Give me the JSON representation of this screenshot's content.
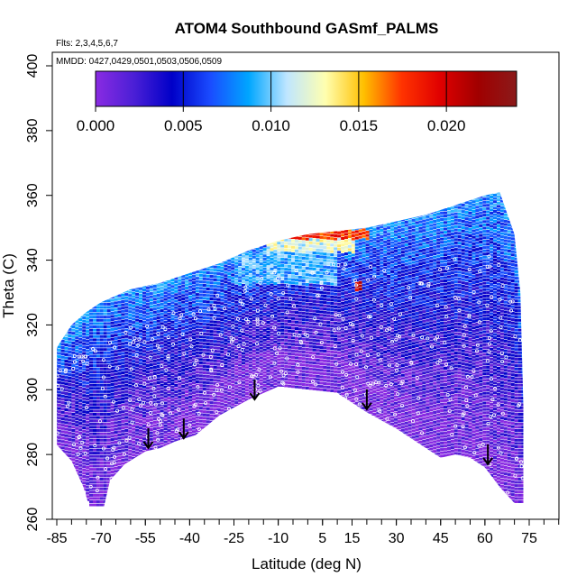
{
  "chart_data": {
    "type": "heatmap",
    "title": "ATOM4 Southbound GASmf_PALMS",
    "flights_note": "Flts: 2,3,4,5,6,7",
    "dates_note": "MMDD: 0427,0429,0501,0503,0506,0509",
    "xlabel": "Latitude (deg N)",
    "ylabel": "Theta (C)",
    "xlim": [
      -88,
      85
    ],
    "ylim": [
      260,
      405
    ],
    "x_tick_labels": [
      -85,
      -70,
      -55,
      -40,
      -25,
      -10,
      5,
      15,
      30,
      45,
      60,
      75
    ],
    "y_tick_labels": [
      260,
      280,
      300,
      320,
      340,
      360,
      380,
      400
    ],
    "colorbar": {
      "range": [
        0,
        0.024
      ],
      "tick_values": [
        0.0,
        0.005,
        0.01,
        0.015,
        0.02
      ],
      "tick_labels": [
        "0.000",
        "0.005",
        "0.010",
        "0.015",
        "0.020"
      ],
      "colors": [
        "#8a2be2",
        "#4b1fd6",
        "#0000c8",
        "#1a4cff",
        "#00a6ff",
        "#bfe6ff",
        "#ffffb0",
        "#ffc000",
        "#ff3300",
        "#e00000",
        "#a00000",
        "#8b1a1a"
      ]
    },
    "data_upper_boundary": [
      {
        "lat": -85,
        "theta": 313
      },
      {
        "lat": -80,
        "theta": 320
      },
      {
        "lat": -75,
        "theta": 324
      },
      {
        "lat": -70,
        "theta": 327
      },
      {
        "lat": -60,
        "theta": 331
      },
      {
        "lat": -50,
        "theta": 333
      },
      {
        "lat": -40,
        "theta": 336
      },
      {
        "lat": -30,
        "theta": 339
      },
      {
        "lat": -20,
        "theta": 343
      },
      {
        "lat": -10,
        "theta": 346
      },
      {
        "lat": 0,
        "theta": 348
      },
      {
        "lat": 10,
        "theta": 349
      },
      {
        "lat": 20,
        "theta": 350
      },
      {
        "lat": 30,
        "theta": 352
      },
      {
        "lat": 40,
        "theta": 354
      },
      {
        "lat": 50,
        "theta": 357
      },
      {
        "lat": 60,
        "theta": 360
      },
      {
        "lat": 65,
        "theta": 361
      },
      {
        "lat": 70,
        "theta": 348
      },
      {
        "lat": 72,
        "theta": 330
      },
      {
        "lat": 73,
        "theta": 295
      }
    ],
    "data_lower_boundary": [
      {
        "lat": -85,
        "theta": 283
      },
      {
        "lat": -80,
        "theta": 278
      },
      {
        "lat": -76,
        "theta": 270
      },
      {
        "lat": -74,
        "theta": 264
      },
      {
        "lat": -69,
        "theta": 264
      },
      {
        "lat": -67,
        "theta": 272
      },
      {
        "lat": -62,
        "theta": 277
      },
      {
        "lat": -55,
        "theta": 281
      },
      {
        "lat": -50,
        "theta": 282
      },
      {
        "lat": -45,
        "theta": 284
      },
      {
        "lat": -38,
        "theta": 286
      },
      {
        "lat": -30,
        "theta": 292
      },
      {
        "lat": -20,
        "theta": 297
      },
      {
        "lat": -10,
        "theta": 301
      },
      {
        "lat": 0,
        "theta": 300
      },
      {
        "lat": 10,
        "theta": 299
      },
      {
        "lat": 20,
        "theta": 293
      },
      {
        "lat": 30,
        "theta": 288
      },
      {
        "lat": 40,
        "theta": 282
      },
      {
        "lat": 45,
        "theta": 279
      },
      {
        "lat": 50,
        "theta": 280
      },
      {
        "lat": 55,
        "theta": 279
      },
      {
        "lat": 60,
        "theta": 276
      },
      {
        "lat": 65,
        "theta": 270
      },
      {
        "lat": 70,
        "theta": 265
      },
      {
        "lat": 73,
        "theta": 265
      }
    ],
    "arrows": [
      {
        "lat": -54,
        "theta": 282
      },
      {
        "lat": -42,
        "theta": 285
      },
      {
        "lat": -18,
        "theta": 297
      },
      {
        "lat": 20,
        "theta": 294
      },
      {
        "lat": 61,
        "theta": 277
      }
    ],
    "high_value_features": [
      {
        "lat_min": -15,
        "lat_max": 20,
        "theta_min": 346,
        "theta_max": 349,
        "value": 0.018
      },
      {
        "lat_min": 16,
        "lat_max": 18,
        "theta_min": 330,
        "theta_max": 333,
        "value": 0.02
      },
      {
        "lat_min": -15,
        "lat_max": 15,
        "theta_min": 342,
        "theta_max": 346,
        "value": 0.012
      },
      {
        "lat_min": -25,
        "lat_max": 10,
        "theta_min": 332,
        "theta_max": 342,
        "value": 0.009
      }
    ]
  }
}
